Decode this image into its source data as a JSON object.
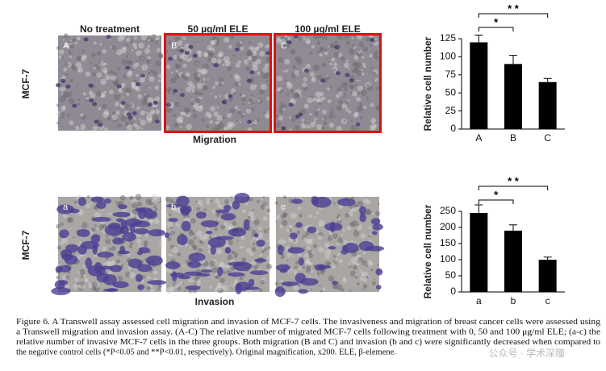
{
  "figure": {
    "column_headers": [
      "No treatment",
      "50 µg/ml ELE",
      "100 µg/ml ELE"
    ],
    "row_label": "MCF-7",
    "row_titles": [
      "Migration",
      "Invasion"
    ],
    "panel_letters": [
      [
        "A",
        "B",
        "C"
      ],
      [
        "a",
        "b",
        "c"
      ]
    ],
    "caption": [
      "Figure 6. A Transwell assay assessed cell migration and invasion of MCF-7 cells. The invasiveness and migration of breast cancer cells were assessed using",
      "a Transwell migration and invasion assay. (A-C) The relative number of migrated MCF-7 cells following treatment with 0, 50 and 100 μg/ml ELE; (a-c) the",
      "relative number of invasive MCF-7 cells in the three groups. Both migration (B and C) and invasion (b and c) were significantly decreased when compared to",
      "the negative control cells (*P<0.05 and **P<0.01, respectively). Original magnification, x200. ELE, β-elemene."
    ],
    "watermark": "公众号 · 学术深瞳"
  },
  "chart_data": [
    {
      "type": "bar",
      "ylabel": "Relative cell number",
      "categories": [
        "A",
        "B",
        "C"
      ],
      "values": [
        120,
        90,
        65
      ],
      "errors": [
        10,
        12,
        5
      ],
      "color": "#000000",
      "ylim": [
        0,
        125
      ],
      "yticks": [
        0,
        25,
        50,
        75,
        100,
        125
      ],
      "significance": [
        "*",
        "* *"
      ]
    },
    {
      "type": "bar",
      "ylabel": "Relative cell number",
      "categories": [
        "a",
        "b",
        "c"
      ],
      "values": [
        245,
        190,
        100
      ],
      "errors": [
        25,
        18,
        8
      ],
      "color": "#000000",
      "ylim": [
        0,
        250
      ],
      "yticks": [
        0,
        50,
        100,
        150,
        200,
        250
      ],
      "significance": [
        "*",
        "* *"
      ]
    }
  ]
}
